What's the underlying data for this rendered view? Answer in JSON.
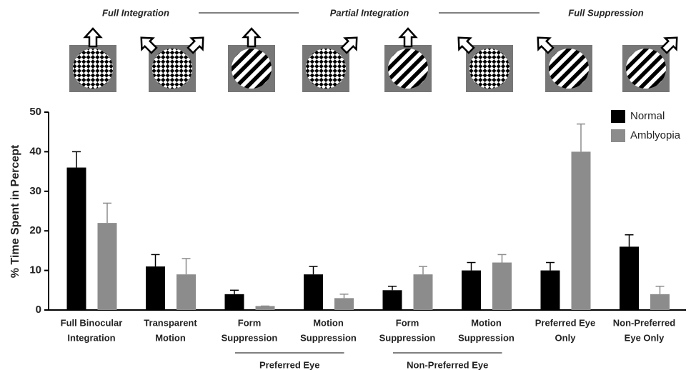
{
  "header_labels": [
    "Full Integration",
    "Partial Integration",
    "Full Suppression"
  ],
  "chart_data": {
    "type": "bar",
    "ylabel": "% Time Spent in Percept",
    "categories": [
      [
        "Full Binocular",
        "Integration"
      ],
      [
        "Transparent",
        "Motion"
      ],
      [
        "Form",
        "Suppression"
      ],
      [
        "Motion",
        "Suppression"
      ],
      [
        "Form",
        "Suppression"
      ],
      [
        "Motion",
        "Suppression"
      ],
      [
        "Preferred Eye",
        "Only"
      ],
      [
        "Non-Preferred",
        "Eye Only"
      ]
    ],
    "groups": [
      "Preferred Eye",
      "Non-Preferred  Eye"
    ],
    "series": [
      {
        "name": "Normal",
        "color": "#000000",
        "values": [
          36,
          11,
          4,
          9,
          5,
          10,
          10,
          16
        ],
        "errors": [
          4,
          3,
          1,
          2,
          1,
          2,
          2,
          3
        ]
      },
      {
        "name": "Amblyopia",
        "color": "#8c8c8c",
        "values": [
          22,
          9,
          1,
          3,
          9,
          12,
          40,
          4
        ],
        "errors": [
          5,
          4,
          0,
          1,
          2,
          2,
          7,
          2
        ]
      }
    ],
    "ylim": [
      0,
      50
    ],
    "yticks": [
      0,
      10,
      20,
      30,
      40,
      50
    ],
    "grid": false,
    "legend": "top-right"
  }
}
